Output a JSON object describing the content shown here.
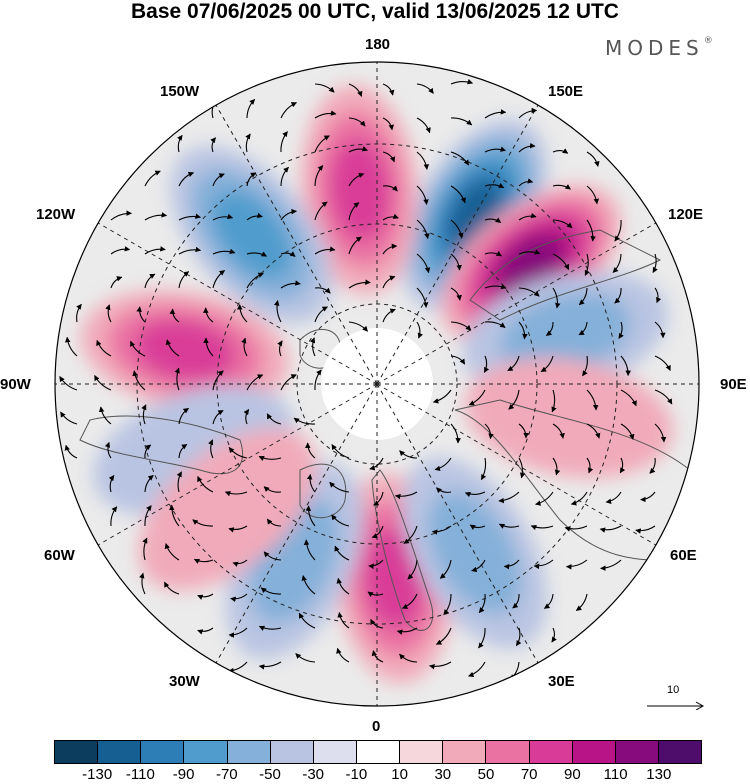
{
  "title": "Base 07/06/2025 00 UTC, valid 13/06/2025 12 UTC",
  "brand": {
    "name": "MODES",
    "mark": "®"
  },
  "longitude_labels": {
    "n180": "180",
    "e150": "150E",
    "e120": "120E",
    "e90": "90E",
    "e60": "60E",
    "e30": "30E",
    "z0": "0",
    "w30": "30W",
    "w60": "60W",
    "w90": "90W",
    "w120": "120W",
    "w150": "150W"
  },
  "reference_vector": {
    "label": "10"
  },
  "colorbar": {
    "ticks": [
      "-130",
      "-110",
      "-90",
      "-70",
      "-50",
      "-30",
      "-10",
      "10",
      "30",
      "50",
      "70",
      "90",
      "110",
      "130"
    ],
    "colors": [
      "#0c3d5e",
      "#155f93",
      "#2d7db6",
      "#4f9ccd",
      "#85b0d9",
      "#b9c4e2",
      "#dedfee",
      "#ffffff",
      "#f6d7dc",
      "#f1aab9",
      "#ea72a3",
      "#d93c98",
      "#b81487",
      "#870b7c",
      "#4e0d6a"
    ]
  },
  "map": {
    "projection": "north polar stereographic",
    "anomaly_centers": [
      {
        "lon": 150,
        "value": -110
      },
      {
        "lon": 128,
        "value": 110
      },
      {
        "lon": -175,
        "value": 80
      },
      {
        "lon": -140,
        "value": -70
      },
      {
        "lon": -100,
        "value": 70
      },
      {
        "lon": 105,
        "value": -50
      },
      {
        "lon": 80,
        "value": 40
      },
      {
        "lon": 5,
        "value": 70
      },
      {
        "lon": 30,
        "value": -50
      },
      {
        "lon": -25,
        "value": -50
      },
      {
        "lon": -70,
        "value": -40
      },
      {
        "lon": -50,
        "value": 30
      }
    ]
  }
}
